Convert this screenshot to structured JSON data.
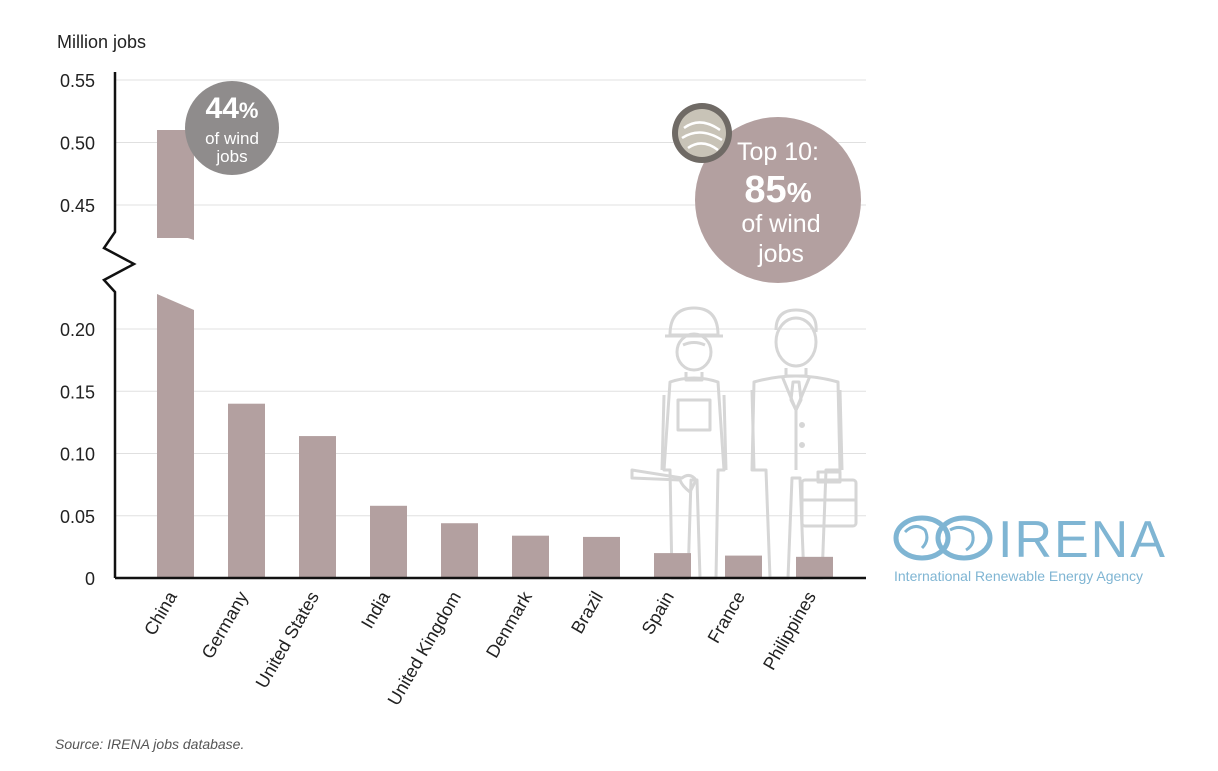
{
  "chart_data": {
    "type": "bar",
    "ylabel": "Million jobs",
    "categories": [
      "China",
      "Germany",
      "United States",
      "India",
      "United Kingdom",
      "Denmark",
      "Brazil",
      "Spain",
      "France",
      "Philippines"
    ],
    "values": [
      0.51,
      0.14,
      0.114,
      0.058,
      0.044,
      0.034,
      0.033,
      0.02,
      0.018,
      0.017
    ],
    "yticks": [
      "0",
      "0.05",
      "0.10",
      "0.15",
      "0.20",
      "0.45",
      "0.50",
      "0.55"
    ],
    "axis_break": true,
    "grid": true,
    "bar_color": "#b3a0a0"
  },
  "annotations": {
    "china_share": {
      "pct": "44",
      "pct_sign": "%",
      "line1": "of wind",
      "line2": "jobs",
      "color": "#8f8c8c"
    },
    "top10": {
      "line1": "Top 10:",
      "pct": "85",
      "pct_sign": "%",
      "line2": "of wind",
      "line3": "jobs",
      "color": "#b3a0a0"
    }
  },
  "logo": {
    "name": "IRENA",
    "tagline": "International Renewable Energy Agency",
    "color": "#7fb5d3"
  },
  "source": "Source: IRENA jobs database.",
  "icons": {
    "workers": "workers-illustration-icon",
    "globe": "globe-icon"
  }
}
